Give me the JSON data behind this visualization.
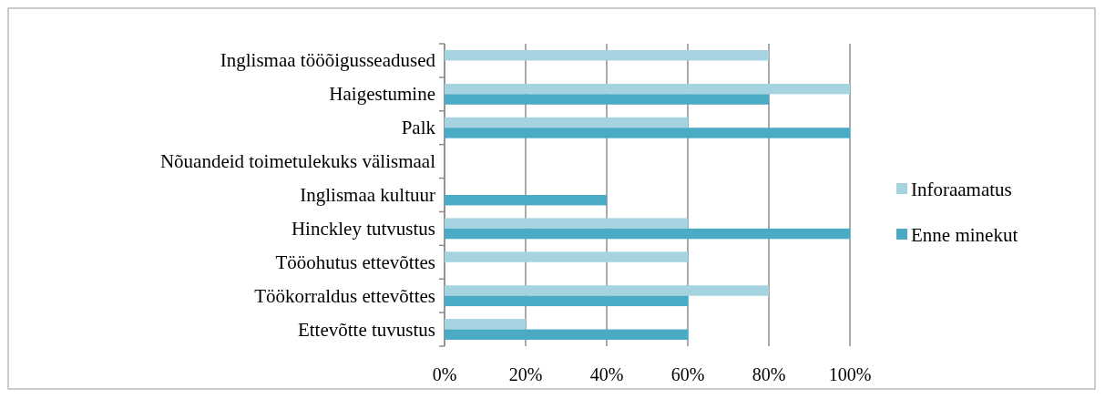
{
  "chart_data": {
    "type": "bar",
    "orientation": "horizontal",
    "categories": [
      "Inglismaa tööõigusseadused",
      "Haigestumine",
      "Palk",
      "Nõuandeid toimetulekuks välismaal",
      "Inglismaa kultuur",
      "Hinckley tutvustus",
      "Tööohutus ettevõttes",
      "Töökorraldus ettevõttes",
      "Ettevõtte tuvustus"
    ],
    "series": [
      {
        "name": "Inforaamatus",
        "color": "#a5d3e0",
        "values": [
          80,
          100,
          60,
          0,
          0,
          60,
          60,
          80,
          20
        ]
      },
      {
        "name": "Enne minekut",
        "color": "#4babc5",
        "values": [
          0,
          80,
          100,
          0,
          40,
          100,
          0,
          60,
          60
        ]
      }
    ],
    "xlim": [
      0,
      100
    ],
    "xticks": [
      {
        "value": 0,
        "label": "0%"
      },
      {
        "value": 20,
        "label": "20%"
      },
      {
        "value": 40,
        "label": "40%"
      },
      {
        "value": 60,
        "label": "60%"
      },
      {
        "value": 80,
        "label": "80%"
      },
      {
        "value": 100,
        "label": "100%"
      }
    ],
    "grid": "x",
    "legend": "right"
  }
}
